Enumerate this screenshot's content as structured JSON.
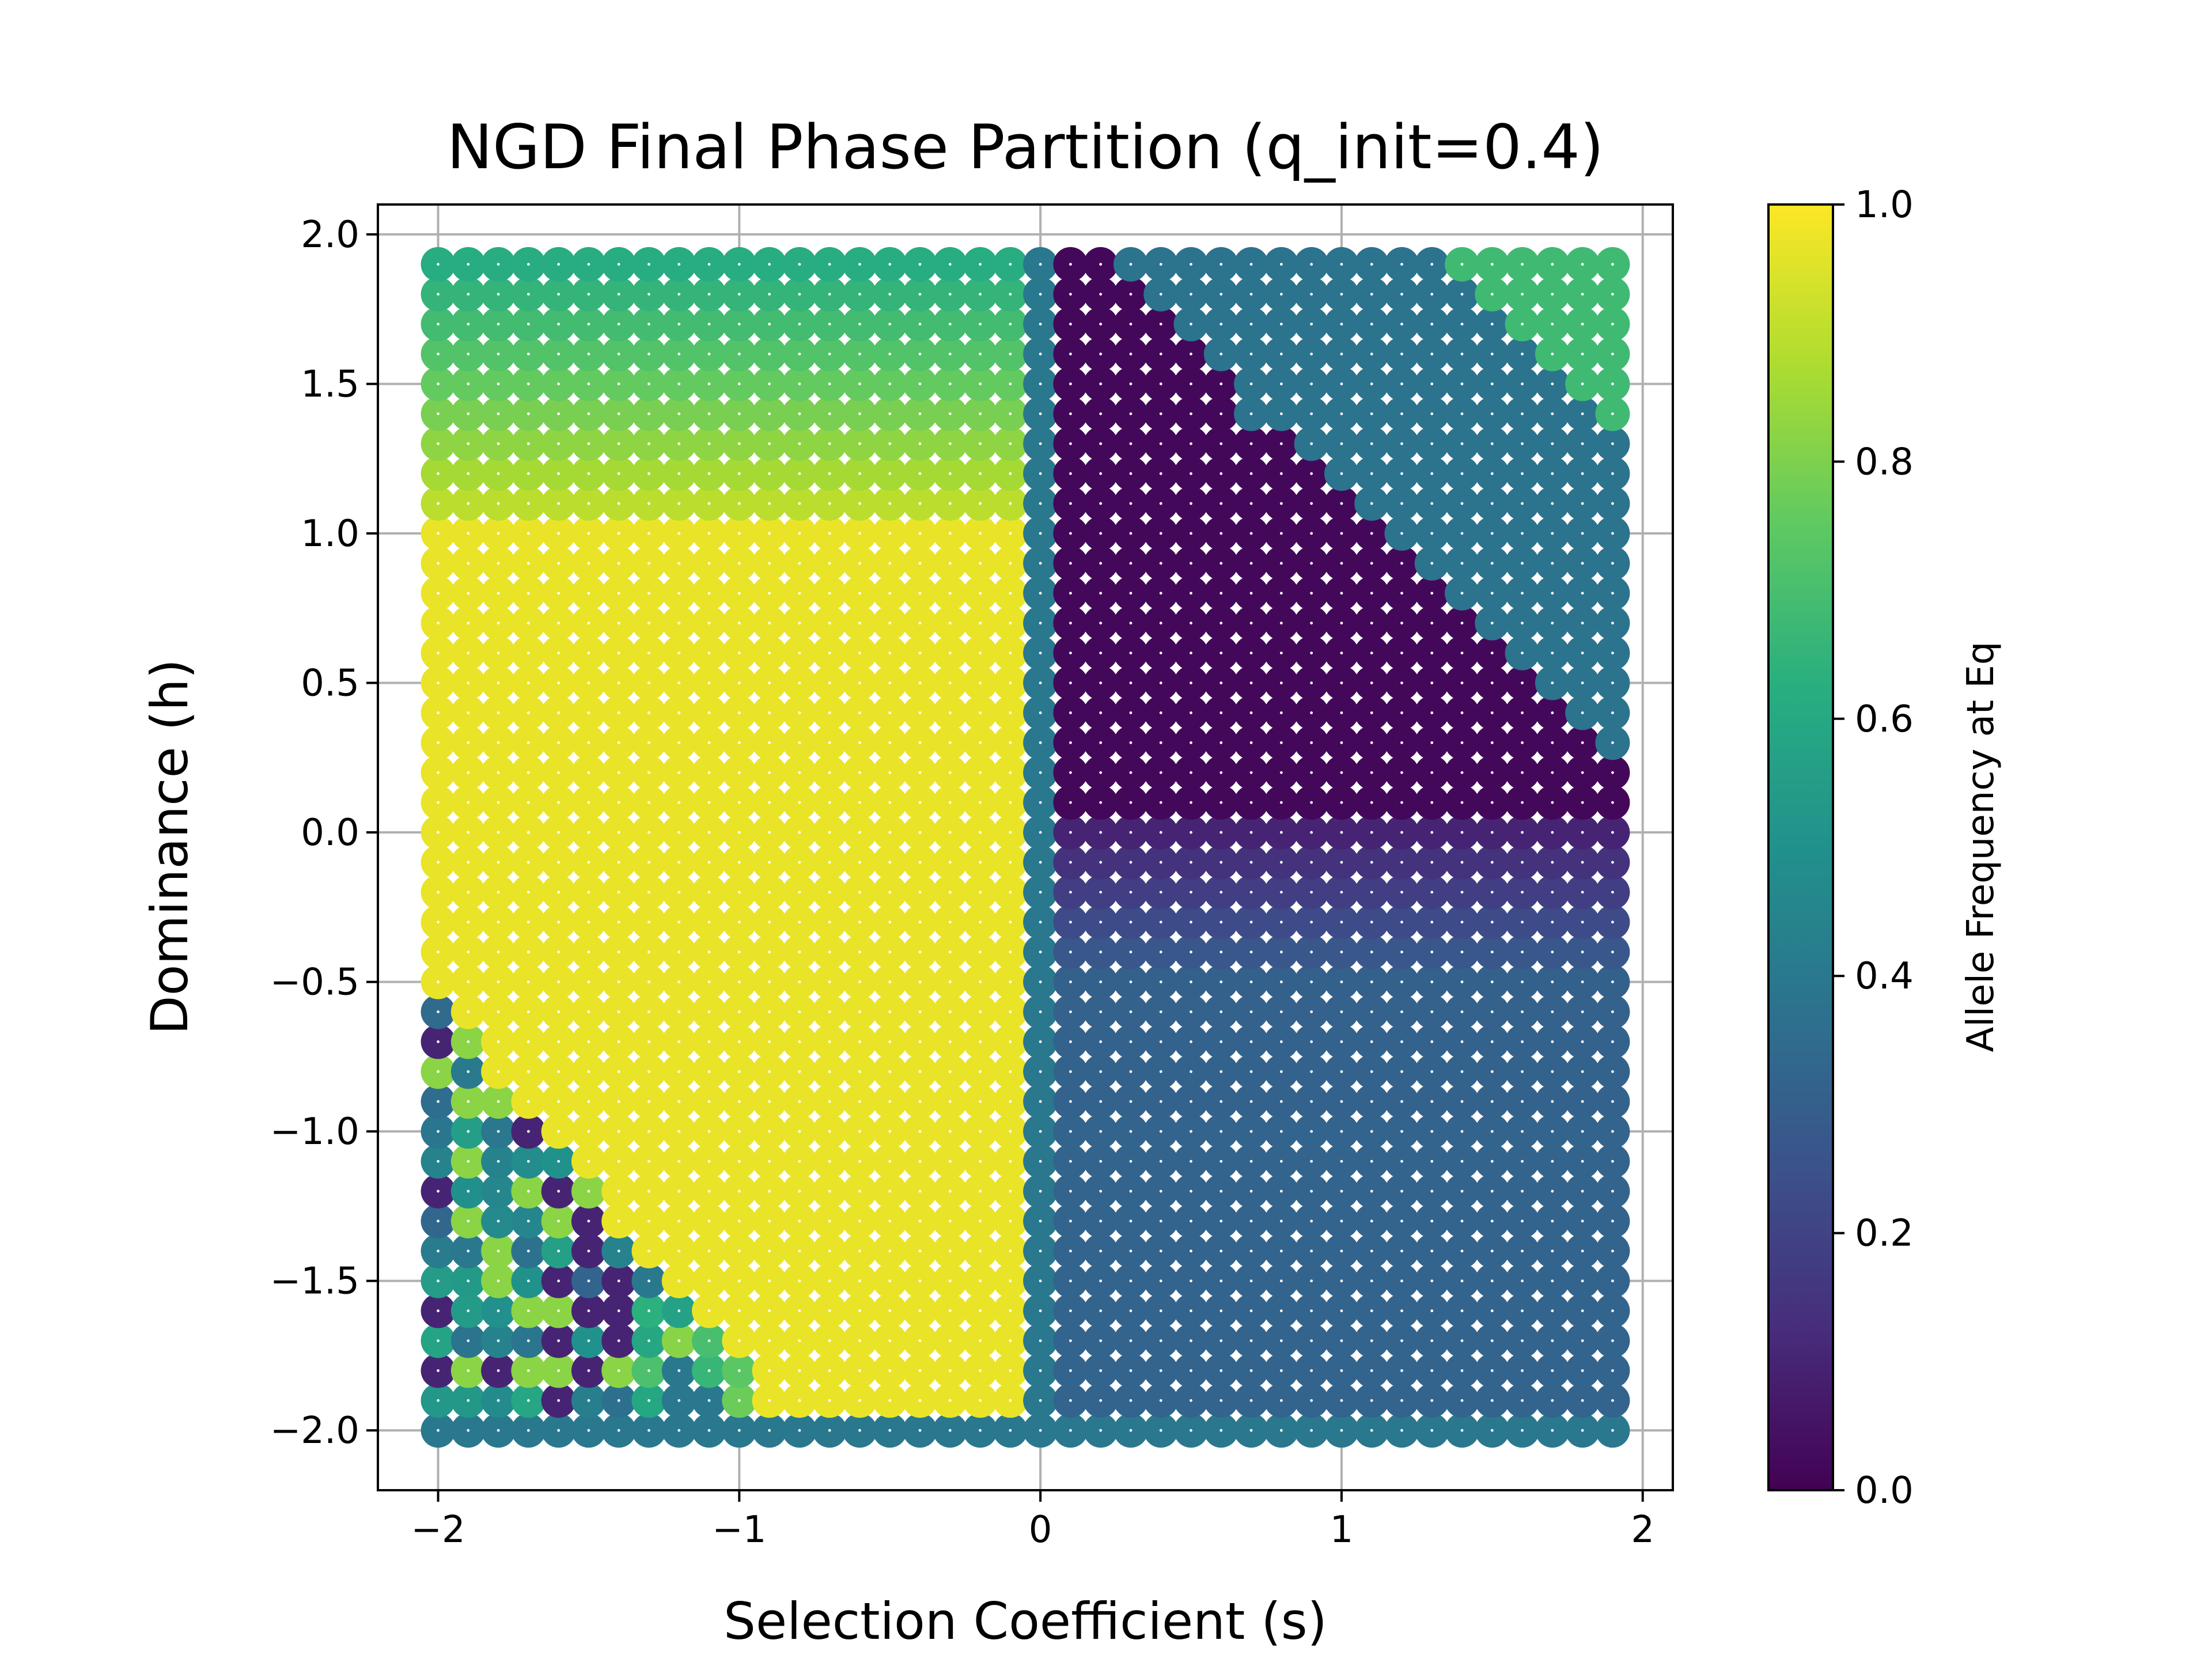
{
  "chart_data": {
    "type": "scatter",
    "title": "NGD Final Phase Partition (q_init=0.4)",
    "xlabel": "Selection Coefficient (s)",
    "ylabel": "Dominance (h)",
    "xlim": [
      -2.2,
      2.1
    ],
    "ylim": [
      -2.2,
      2.1
    ],
    "xticks": [
      -2,
      -1,
      0,
      1,
      2
    ],
    "xtick_labels": [
      "−2",
      "−1",
      "0",
      "1",
      "2"
    ],
    "yticks": [
      -2.0,
      -1.5,
      -1.0,
      -0.5,
      0.0,
      0.5,
      1.0,
      1.5,
      2.0
    ],
    "ytick_labels": [
      "−2.0",
      "−1.5",
      "−1.0",
      "−0.5",
      "0.0",
      "0.5",
      "1.0",
      "1.5",
      "2.0"
    ],
    "grid": true,
    "colormap": "viridis",
    "grid_step": 0.1,
    "x_range": [
      -2.0,
      1.9
    ],
    "y_range": [
      -2.0,
      1.9
    ],
    "color_encoding": "allele frequency at equilibrium, 0 to 1",
    "colorbar": {
      "label": "Allele Frequency at Eq",
      "range": [
        0.0,
        1.0
      ],
      "ticks": [
        0.0,
        0.2,
        0.4,
        0.6,
        0.8,
        1.0
      ],
      "tick_labels": [
        "0.0",
        "0.2",
        "0.4",
        "0.6",
        "0.8",
        "1.0"
      ]
    },
    "colors": {
      "marker_edge": "#ffffff",
      "grid": "#b0b0b0",
      "axis": "#000000"
    }
  }
}
